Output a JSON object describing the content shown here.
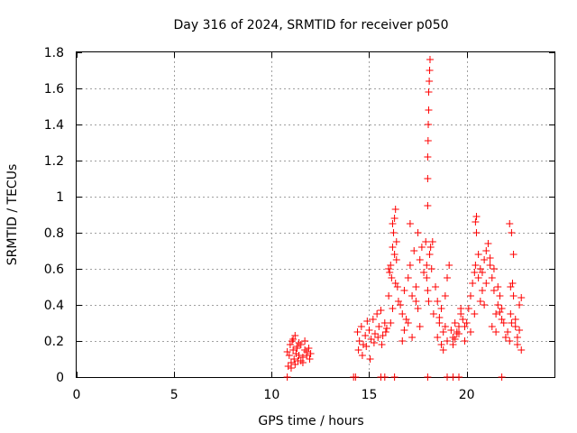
{
  "chart_data": {
    "type": "scatter",
    "title": "Day 316 of 2024, SRMTID for receiver p050",
    "xlabel": "GPS time / hours",
    "ylabel": "SRMTID / TECUs",
    "xlim": [
      0,
      24.5
    ],
    "ylim": [
      0,
      1.8
    ],
    "xticks": [
      0,
      5,
      10,
      15,
      20
    ],
    "yticks": [
      0,
      0.2,
      0.4,
      0.6,
      0.8,
      1,
      1.2,
      1.4,
      1.6,
      1.8
    ],
    "ytick_labels": [
      "0",
      "0.2",
      "0.4",
      "0.6",
      "0.8",
      "1",
      "1.2",
      "1.4",
      "1.6",
      "1.8"
    ],
    "grid": true,
    "marker": "+",
    "color": "#ff0000",
    "series": [
      {
        "name": "SRMTID",
        "x": [
          10.8,
          10.9,
          10.95,
          11.0,
          11.05,
          11.1,
          11.15,
          11.2,
          11.25,
          11.3,
          11.35,
          11.4,
          11.5,
          11.6,
          11.7,
          11.8,
          11.9,
          12.0,
          10.85,
          11.0,
          11.2,
          11.4,
          11.6,
          11.8,
          11.95,
          11.1,
          11.3,
          11.5,
          11.7,
          14.4,
          14.5,
          14.6,
          14.7,
          14.8,
          14.9,
          15.0,
          15.1,
          15.2,
          15.3,
          15.4,
          15.5,
          15.6,
          15.7,
          15.8,
          15.9,
          14.45,
          14.65,
          14.85,
          15.05,
          15.25,
          15.45,
          15.65,
          15.85,
          16.0,
          16.05,
          16.1,
          16.15,
          16.2,
          16.25,
          16.3,
          16.35,
          16.4,
          16.45,
          16.5,
          16.1,
          16.2,
          16.3,
          16.4,
          16.0,
          16.2,
          16.35,
          16.6,
          16.7,
          16.8,
          16.9,
          17.0,
          17.1,
          17.2,
          17.3,
          17.4,
          17.5,
          17.6,
          17.7,
          17.8,
          16.8,
          17.0,
          17.2,
          17.4,
          17.6,
          16.7,
          17.1,
          17.5,
          17.9,
          17.95,
          18.0,
          18.0,
          18.0,
          18.02,
          18.03,
          18.05,
          18.05,
          18.08,
          18.1,
          18.12,
          17.95,
          18.0,
          18.05,
          18.1,
          18.15,
          18.2,
          18.25,
          18.3,
          18.4,
          18.5,
          18.6,
          18.7,
          18.8,
          18.9,
          19.0,
          19.1,
          18.5,
          18.7,
          18.9,
          19.0,
          18.6,
          18.8,
          19.2,
          19.3,
          19.4,
          19.5,
          19.6,
          19.7,
          19.8,
          19.9,
          19.3,
          19.5,
          19.7,
          19.9,
          19.4,
          19.6,
          20.0,
          20.1,
          20.2,
          20.3,
          20.4,
          20.45,
          20.5,
          20.6,
          20.7,
          20.8,
          20.9,
          21.0,
          20.45,
          20.5,
          20.6,
          20.8,
          21.0,
          20.2,
          20.4,
          20.7,
          20.9,
          21.1,
          21.2,
          21.3,
          21.4,
          21.5,
          21.6,
          21.7,
          21.8,
          21.9,
          22.0,
          21.2,
          21.4,
          21.6,
          21.8,
          21.3,
          21.5,
          21.7,
          22.1,
          22.2,
          22.25,
          22.3,
          22.35,
          22.4,
          22.5,
          22.6,
          22.7,
          22.8,
          22.2,
          22.3,
          22.4,
          22.6,
          22.8,
          22.25,
          22.5,
          22.7,
          10.8,
          14.2,
          14.3,
          15.6,
          15.8,
          16.3,
          18.0,
          19.0,
          19.3,
          19.6,
          21.8
        ],
        "y": [
          0.14,
          0.12,
          0.18,
          0.08,
          0.2,
          0.15,
          0.1,
          0.23,
          0.13,
          0.17,
          0.09,
          0.12,
          0.18,
          0.11,
          0.15,
          0.14,
          0.16,
          0.13,
          0.06,
          0.05,
          0.07,
          0.19,
          0.08,
          0.12,
          0.1,
          0.21,
          0.16,
          0.09,
          0.2,
          0.25,
          0.2,
          0.28,
          0.18,
          0.23,
          0.31,
          0.26,
          0.21,
          0.32,
          0.24,
          0.35,
          0.28,
          0.37,
          0.23,
          0.3,
          0.27,
          0.15,
          0.12,
          0.17,
          0.1,
          0.19,
          0.22,
          0.18,
          0.25,
          0.45,
          0.58,
          0.62,
          0.55,
          0.72,
          0.8,
          0.88,
          0.93,
          0.65,
          0.5,
          0.42,
          0.3,
          0.38,
          0.68,
          0.75,
          0.6,
          0.85,
          0.52,
          0.4,
          0.35,
          0.48,
          0.32,
          0.55,
          0.62,
          0.45,
          0.7,
          0.5,
          0.38,
          0.65,
          0.72,
          0.58,
          0.26,
          0.3,
          0.22,
          0.42,
          0.28,
          0.2,
          0.85,
          0.8,
          0.75,
          0.62,
          0.95,
          1.1,
          1.22,
          1.31,
          1.4,
          1.48,
          1.58,
          1.64,
          1.7,
          1.76,
          0.55,
          0.48,
          0.42,
          0.68,
          0.72,
          0.6,
          0.75,
          0.35,
          0.5,
          0.42,
          0.3,
          0.38,
          0.25,
          0.45,
          0.55,
          0.62,
          0.22,
          0.18,
          0.28,
          0.2,
          0.33,
          0.15,
          0.26,
          0.22,
          0.3,
          0.24,
          0.28,
          0.35,
          0.32,
          0.2,
          0.18,
          0.25,
          0.38,
          0.28,
          0.21,
          0.24,
          0.3,
          0.38,
          0.45,
          0.52,
          0.58,
          0.62,
          0.89,
          0.55,
          0.6,
          0.48,
          0.65,
          0.7,
          0.86,
          0.8,
          0.68,
          0.58,
          0.52,
          0.25,
          0.35,
          0.42,
          0.4,
          0.74,
          0.62,
          0.55,
          0.48,
          0.35,
          0.4,
          0.45,
          0.32,
          0.3,
          0.22,
          0.66,
          0.6,
          0.5,
          0.38,
          0.28,
          0.25,
          0.36,
          0.25,
          0.2,
          0.35,
          0.3,
          0.52,
          0.45,
          0.28,
          0.22,
          0.4,
          0.44,
          0.85,
          0.8,
          0.68,
          0.18,
          0.15,
          0.5,
          0.32,
          0.26,
          0,
          0,
          0,
          0,
          0,
          0,
          0,
          0,
          0,
          0,
          0
        ]
      }
    ]
  }
}
